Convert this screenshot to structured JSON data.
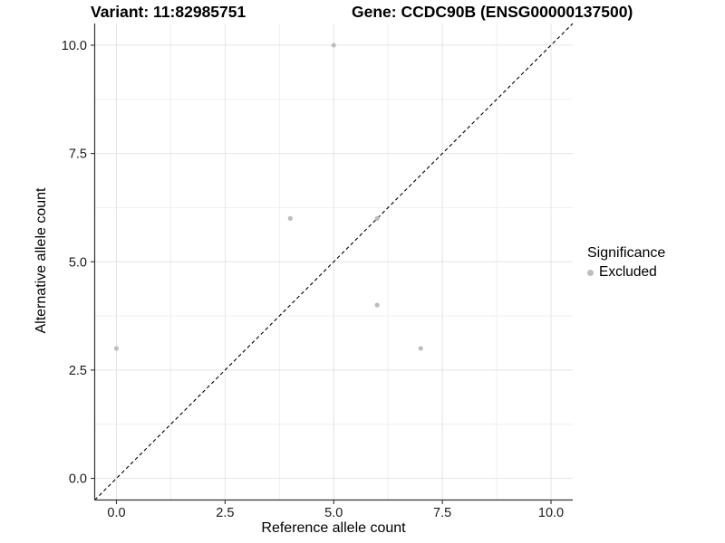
{
  "chart_data": {
    "type": "scatter",
    "title_left": "Variant: 11:82985751",
    "title_right": "Gene: CCDC90B (ENSG00000137500)",
    "xlabel": "Reference allele count",
    "ylabel": "Alternative allele count",
    "xlim": [
      -0.5,
      10.5
    ],
    "ylim": [
      -0.5,
      10.5
    ],
    "x_ticks": {
      "values": [
        0,
        2.5,
        5,
        7.5,
        10
      ],
      "labels": [
        "0.0",
        "2.5",
        "5.0",
        "7.5",
        "10.0"
      ]
    },
    "y_ticks": {
      "values": [
        0,
        2.5,
        5,
        7.5,
        10
      ],
      "labels": [
        "0.0",
        "2.5",
        "5.0",
        "7.5",
        "10.0"
      ]
    },
    "minor_grid": [
      1.25,
      3.75,
      6.25,
      8.75
    ],
    "grid": "major+minor",
    "series": [
      {
        "name": "Excluded",
        "marker": "circle",
        "color": "#bdbdbd",
        "points": [
          [
            0,
            3
          ],
          [
            4,
            6
          ],
          [
            5,
            10
          ],
          [
            6,
            4
          ],
          [
            6,
            6
          ],
          [
            7,
            3
          ]
        ]
      }
    ],
    "reference_line": {
      "equation": "y = x",
      "style": "dashed",
      "color": "#000000"
    },
    "legend": {
      "title": "Significance",
      "position": "right",
      "entries": [
        {
          "label": "Excluded",
          "color": "#bdbdbd"
        }
      ]
    }
  },
  "colors": {
    "background": "#ffffff",
    "grid_major": "#e4e4e4",
    "grid_minor": "#efefef",
    "axis_line": "#333333",
    "tick_text": "#1a1a1a",
    "point": "#bdbdbd"
  }
}
